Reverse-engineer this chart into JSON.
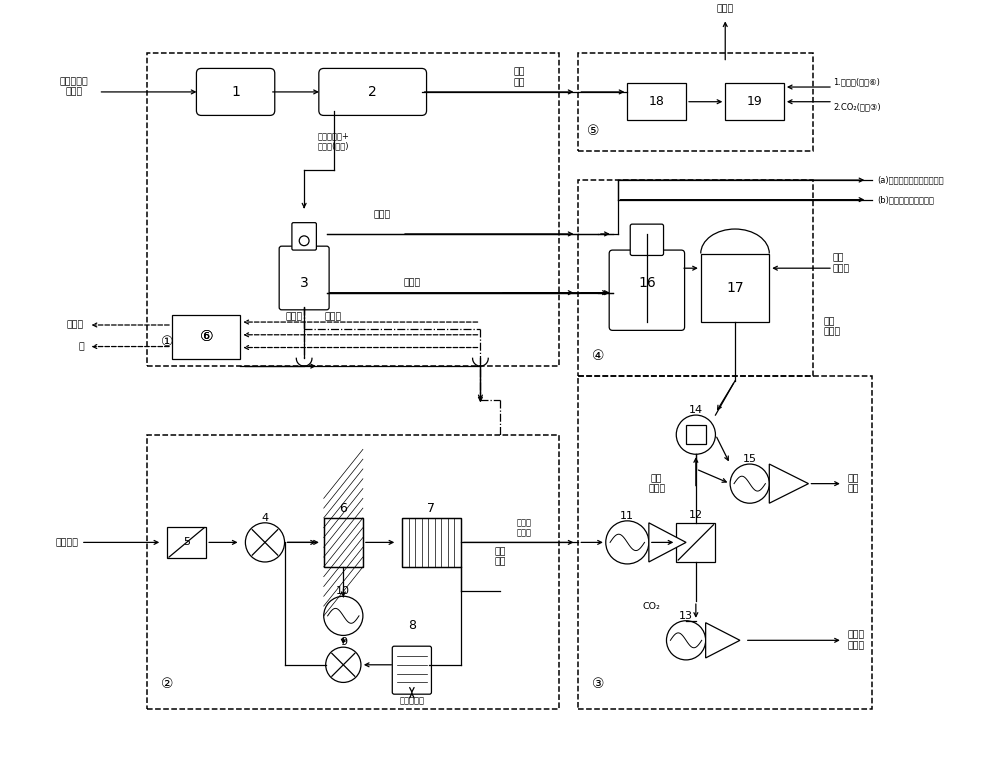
{
  "bg": "#ffffff",
  "figsize": [
    10.0,
    7.62
  ],
  "dpi": 100,
  "lw": 0.9,
  "fs": 6.8,
  "fss": 6.0,
  "labels": {
    "solid_feed": "固体生物物\n质原料",
    "liquid_feed": "液体原料",
    "steam": "水蒸气",
    "elec": "电",
    "activated_carbon": "活性炭",
    "solid_product": "固态\n产物",
    "syngas_high": "高温合成气+\n热解油(气态)",
    "syngas": "合成气",
    "pyroil": "热解油",
    "crude_methane": "粗合成\n天然气",
    "synth_gas": "合成\n天然气",
    "high_pressure_water": "高压\n冷水",
    "drain": "放水或补水",
    "co2": "CO₂",
    "discharge": "排放或\n碳改性",
    "gas_grid": "燃气\n管网",
    "output_a": "(a)热解或改性加热用合成气",
    "output_b": "(b)就近用户或掺入气网",
    "steam_source": "1.水蒸气(来自⑥)",
    "co2_source": "2.CO₂(来自③)",
    "zone1": "①",
    "zone2": "②",
    "zone3": "③",
    "zone4": "④",
    "zone5": "⑤",
    "synth_natural_gas": "合成\n天然气"
  }
}
